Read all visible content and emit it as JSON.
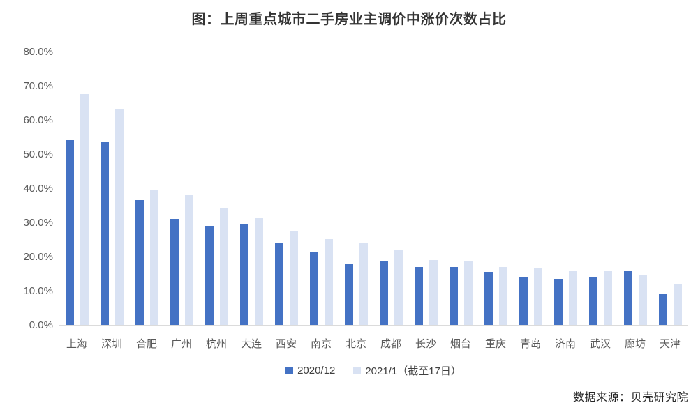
{
  "header": {
    "title": "图：上周重点城市二手房业主调价中涨价次数占比"
  },
  "footer": {
    "source": "数据来源：贝壳研究院"
  },
  "colors": {
    "series1": "#4472C4",
    "series2": "#D9E2F3",
    "axis_label": "#595959",
    "axis_line": "#DBDBDB",
    "title_text": "#333333"
  },
  "chart_data": {
    "type": "bar",
    "title": "图：上周重点城市二手房业主调价中涨价次数占比",
    "categories": [
      "上海",
      "深圳",
      "合肥",
      "广州",
      "杭州",
      "大连",
      "西安",
      "南京",
      "北京",
      "成都",
      "长沙",
      "烟台",
      "重庆",
      "青岛",
      "济南",
      "武汉",
      "廊坊",
      "天津"
    ],
    "series": [
      {
        "name": "2020/12",
        "color": "#4472C4",
        "values": [
          54.0,
          53.5,
          36.5,
          31.0,
          29.0,
          29.5,
          24.0,
          21.5,
          18.0,
          18.5,
          17.0,
          17.0,
          15.5,
          14.0,
          13.5,
          14.0,
          16.0,
          9.0
        ]
      },
      {
        "name": "2021/1（截至17日）",
        "color": "#D9E2F3",
        "values": [
          67.5,
          63.0,
          39.5,
          38.0,
          34.0,
          31.5,
          27.5,
          25.0,
          24.0,
          22.0,
          19.0,
          18.5,
          17.0,
          16.5,
          16.0,
          16.0,
          14.5,
          12.0
        ]
      }
    ],
    "xlabel": "",
    "ylabel": "",
    "ylim": [
      0,
      80
    ],
    "ytick_step": 10,
    "ytick_labels": [
      "80.0%",
      "70.0%",
      "60.0%",
      "50.0%",
      "40.0%",
      "30.0%",
      "20.0%",
      "10.0%",
      "0.0%"
    ],
    "grid": false,
    "legend_position": "bottom"
  }
}
